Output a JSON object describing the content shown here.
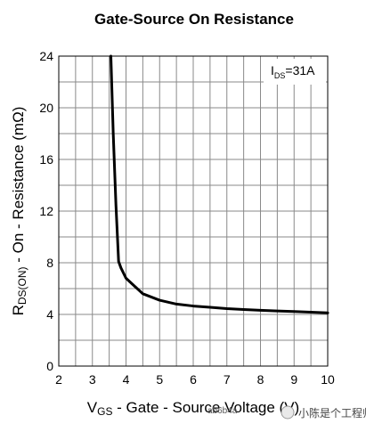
{
  "chart_data": {
    "type": "line",
    "title": "Gate-Source On Resistance",
    "xlabel": {
      "main": "V",
      "sub": "GS",
      "rest": " - Gate - Source Voltage (V)"
    },
    "ylabel": {
      "main": "R",
      "sub": "DS(ON)",
      "rest": " - On - Resistance (mΩ)"
    },
    "xlim": [
      2,
      10
    ],
    "ylim": [
      0,
      24
    ],
    "x_ticks": [
      2,
      3,
      4,
      5,
      6,
      7,
      8,
      9,
      10
    ],
    "y_ticks": [
      0,
      4,
      8,
      12,
      16,
      20,
      24
    ],
    "x_minor_step": 0.5,
    "y_minor_step": 2,
    "grid": true,
    "annotation": {
      "main": "I",
      "sub": "DS",
      "rest": "=31A",
      "placement": "top-right"
    },
    "series": [
      {
        "x": [
          3.55,
          3.62,
          3.7,
          3.78,
          3.85,
          4.0,
          4.25,
          4.5,
          5.0,
          5.5,
          6.0,
          6.5,
          7.0,
          7.5,
          8.0,
          8.5,
          9.0,
          9.5,
          10.0
        ],
        "y": [
          24.0,
          18.0,
          12.5,
          8.1,
          7.6,
          6.8,
          6.2,
          5.6,
          5.1,
          4.8,
          4.65,
          4.55,
          4.45,
          4.38,
          4.32,
          4.27,
          4.22,
          4.17,
          4.12
        ]
      }
    ]
  },
  "watermark": {
    "left": "ab6b4a",
    "right": "小陈是个工程师"
  }
}
